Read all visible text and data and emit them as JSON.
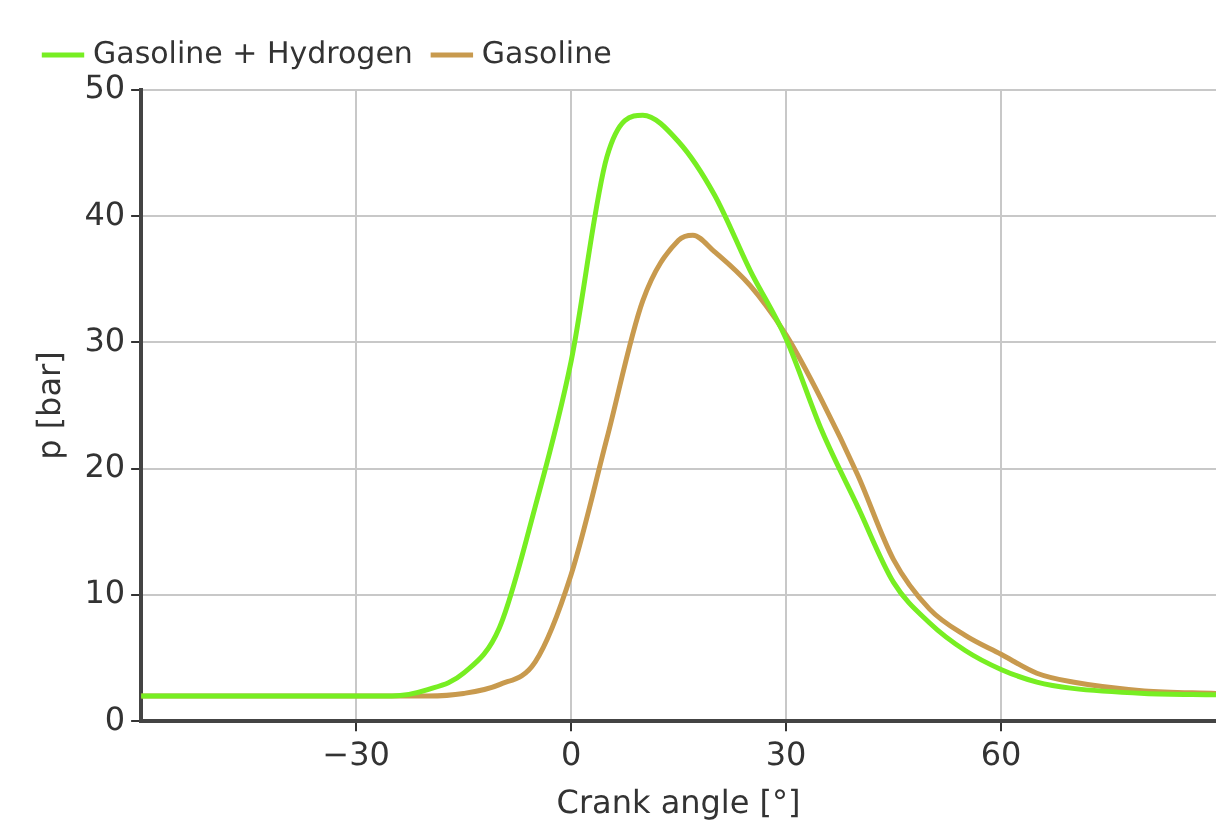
{
  "chart_data": {
    "type": "line",
    "xlabel": "Crank angle [°]",
    "ylabel": "p [bar]",
    "xlim": [
      -60,
      90
    ],
    "xticks": [
      -30,
      0,
      30,
      60
    ],
    "ylim": [
      0,
      50
    ],
    "yticks": [
      0,
      10,
      20,
      30,
      40,
      50
    ],
    "grid": true,
    "legend": "top left",
    "marker": "none",
    "line_style": "solid",
    "series": [
      {
        "name": "Gasoline + Hydrogen",
        "color": "#77ee22",
        "x": [
          -60,
          -40,
          -25,
          -20,
          -15,
          -10,
          -5,
          0,
          5,
          10,
          15,
          20,
          25,
          30,
          35,
          40,
          45,
          50,
          55,
          60,
          65,
          70,
          80,
          90
        ],
        "values": [
          2,
          2,
          2,
          2.5,
          3.8,
          7.4,
          17,
          28.5,
          44.7,
          48,
          45.9,
          41.7,
          35.7,
          30.3,
          23,
          17,
          11,
          7.8,
          5.6,
          4.1,
          3.1,
          2.6,
          2.2,
          2.1
        ]
      },
      {
        "name": "Gasoline",
        "color": "#c89a4e",
        "x": [
          -60,
          -40,
          -20,
          -15,
          -10,
          -5,
          0,
          5,
          10,
          15,
          17,
          20,
          25,
          30,
          35,
          40,
          45,
          50,
          55,
          60,
          65,
          70,
          80,
          90
        ],
        "values": [
          2,
          2,
          2,
          2.2,
          2.9,
          4.7,
          11.6,
          22.4,
          33.3,
          38.1,
          38.5,
          37.2,
          34.5,
          30.6,
          25.4,
          19.5,
          12.8,
          8.9,
          6.8,
          5.3,
          3.8,
          3.1,
          2.4,
          2.2
        ]
      }
    ]
  }
}
